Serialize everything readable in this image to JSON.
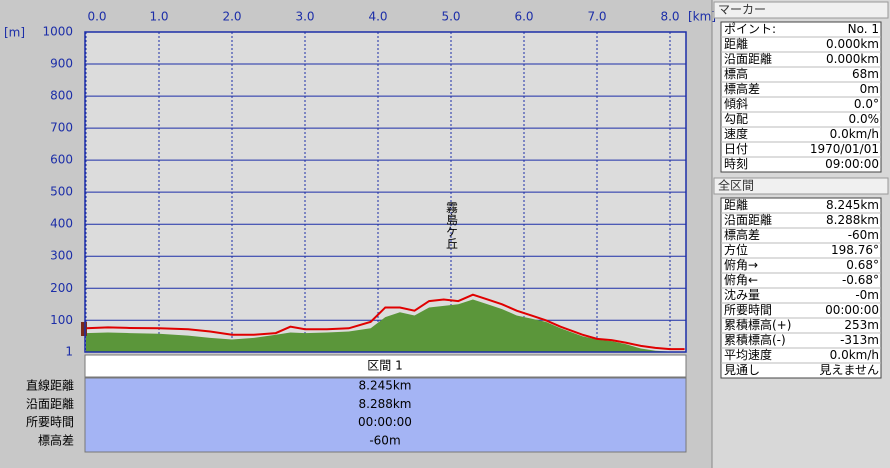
{
  "chart_data": {
    "type": "profile",
    "x_label": "[km]",
    "y_label": "[m]",
    "xlim": [
      0,
      8.22
    ],
    "ylim": [
      1,
      1000
    ],
    "xticks": [
      {
        "value": 0,
        "label": "0.0"
      },
      {
        "value": 1,
        "label": "1.0"
      },
      {
        "value": 2,
        "label": "2.0"
      },
      {
        "value": 3,
        "label": "3.0"
      },
      {
        "value": 4,
        "label": "4.0"
      },
      {
        "value": 5,
        "label": "5.0"
      },
      {
        "value": 6,
        "label": "6.0"
      },
      {
        "value": 7,
        "label": "7.0"
      },
      {
        "value": 8,
        "label": "8.0"
      }
    ],
    "yticks": [
      1,
      100,
      200,
      300,
      400,
      500,
      600,
      700,
      800,
      900,
      1000
    ],
    "grid": true,
    "x": [
      0,
      0.3,
      0.6,
      1.0,
      1.4,
      1.7,
      2.0,
      2.3,
      2.6,
      2.8,
      3.0,
      3.3,
      3.6,
      3.9,
      4.1,
      4.3,
      4.5,
      4.7,
      4.9,
      5.1,
      5.3,
      5.5,
      5.7,
      5.9,
      6.1,
      6.3,
      6.5,
      6.8,
      7.0,
      7.2,
      7.4,
      7.6,
      7.8,
      8.0,
      8.2
    ],
    "series": [
      {
        "type": "area",
        "color": "#5b963a",
        "values": [
          60,
          62,
          60,
          58,
          52,
          45,
          40,
          45,
          55,
          62,
          60,
          62,
          65,
          75,
          110,
          125,
          115,
          140,
          145,
          150,
          165,
          150,
          135,
          115,
          105,
          95,
          75,
          50,
          40,
          35,
          25,
          12,
          5,
          2,
          1
        ]
      },
      {
        "type": "line",
        "color": "#e00000",
        "values": [
          75,
          78,
          76,
          75,
          72,
          65,
          55,
          55,
          60,
          80,
          72,
          72,
          75,
          95,
          140,
          140,
          130,
          160,
          165,
          160,
          180,
          165,
          150,
          130,
          115,
          100,
          80,
          55,
          42,
          38,
          30,
          20,
          14,
          10,
          10
        ]
      }
    ],
    "annotation": {
      "text": "霧島ケ丘",
      "x": 5.0,
      "y": 290
    }
  },
  "section": {
    "title": "区間 1",
    "rows": [
      [
        "直線距離",
        "8.245km"
      ],
      [
        "沿面距離",
        "8.288km"
      ],
      [
        "所要時間",
        "00:00:00"
      ],
      [
        "標高差",
        "-60m"
      ]
    ]
  },
  "marker": {
    "title": "マーカー",
    "rows": [
      [
        "ポイント:",
        "No. 1"
      ],
      [
        "距離",
        "0.000km"
      ],
      [
        "沿面距離",
        "0.000km"
      ],
      [
        "標高",
        "68m"
      ],
      [
        "標高差",
        "0m"
      ],
      [
        "傾斜",
        "0.0°"
      ],
      [
        "勾配",
        "0.0%"
      ],
      [
        "速度",
        "0.0km/h"
      ],
      [
        "日付",
        "1970/01/01"
      ],
      [
        "時刻",
        "09:00:00"
      ]
    ]
  },
  "total": {
    "title": "全区間",
    "rows": [
      [
        "距離",
        "8.245km"
      ],
      [
        "沿面距離",
        "8.288km"
      ],
      [
        "標高差",
        "-60m"
      ],
      [
        "方位",
        "198.76°"
      ],
      [
        "俯角→",
        "0.68°"
      ],
      [
        "俯角←",
        "-0.68°"
      ],
      [
        "沈み量",
        "-0m"
      ],
      [
        "所要時間",
        "00:00:00"
      ],
      [
        "累積標高(+)",
        "253m"
      ],
      [
        "累積標高(-)",
        "-313m"
      ],
      [
        "平均速度",
        "0.0km/h"
      ],
      [
        "見通し",
        "見えません"
      ]
    ]
  }
}
